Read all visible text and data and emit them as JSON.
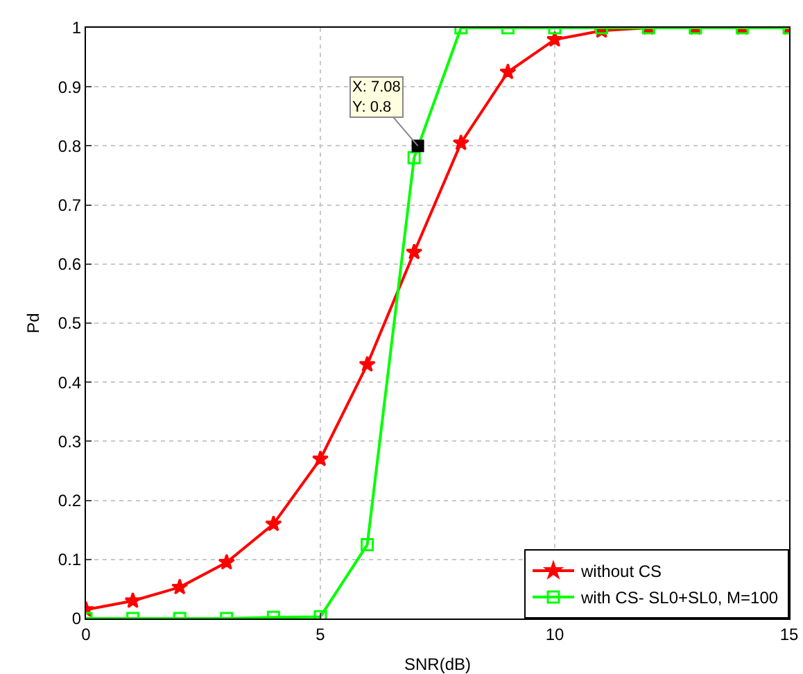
{
  "chart_data": {
    "type": "line",
    "xlabel": "SNR(dB)",
    "ylabel": "Pd",
    "x": [
      0,
      1,
      2,
      3,
      4,
      5,
      6,
      7,
      8,
      9,
      10,
      11,
      12,
      13,
      14,
      15
    ],
    "series": [
      {
        "name": "without CS",
        "color": "#ff0000",
        "marker": "star",
        "values": [
          0.015,
          0.03,
          0.053,
          0.095,
          0.16,
          0.27,
          0.43,
          0.62,
          0.805,
          0.925,
          0.98,
          0.995,
          1,
          1,
          1,
          1
        ]
      },
      {
        "name": "with CS- SL0+SL0, M=100",
        "color": "#00ff00",
        "marker": "square",
        "values": [
          0,
          0,
          0,
          0,
          0.002,
          0.003,
          0.125,
          0.78,
          1,
          1,
          1,
          1,
          1,
          1,
          1,
          1
        ]
      }
    ],
    "annotations": [
      {
        "text": "X: 7.08\nY: 0.8",
        "x": 7.08,
        "y": 0.8
      }
    ],
    "xlim": [
      0,
      15
    ],
    "xticks": [
      0,
      5,
      10,
      15
    ],
    "ylim": [
      0,
      1
    ],
    "yticks": [
      0,
      0.1,
      0.2,
      0.3,
      0.4,
      0.5,
      0.6,
      0.7,
      0.8,
      0.9,
      1
    ],
    "grid": true,
    "legend": "bottom right",
    "line_style": "solid"
  }
}
